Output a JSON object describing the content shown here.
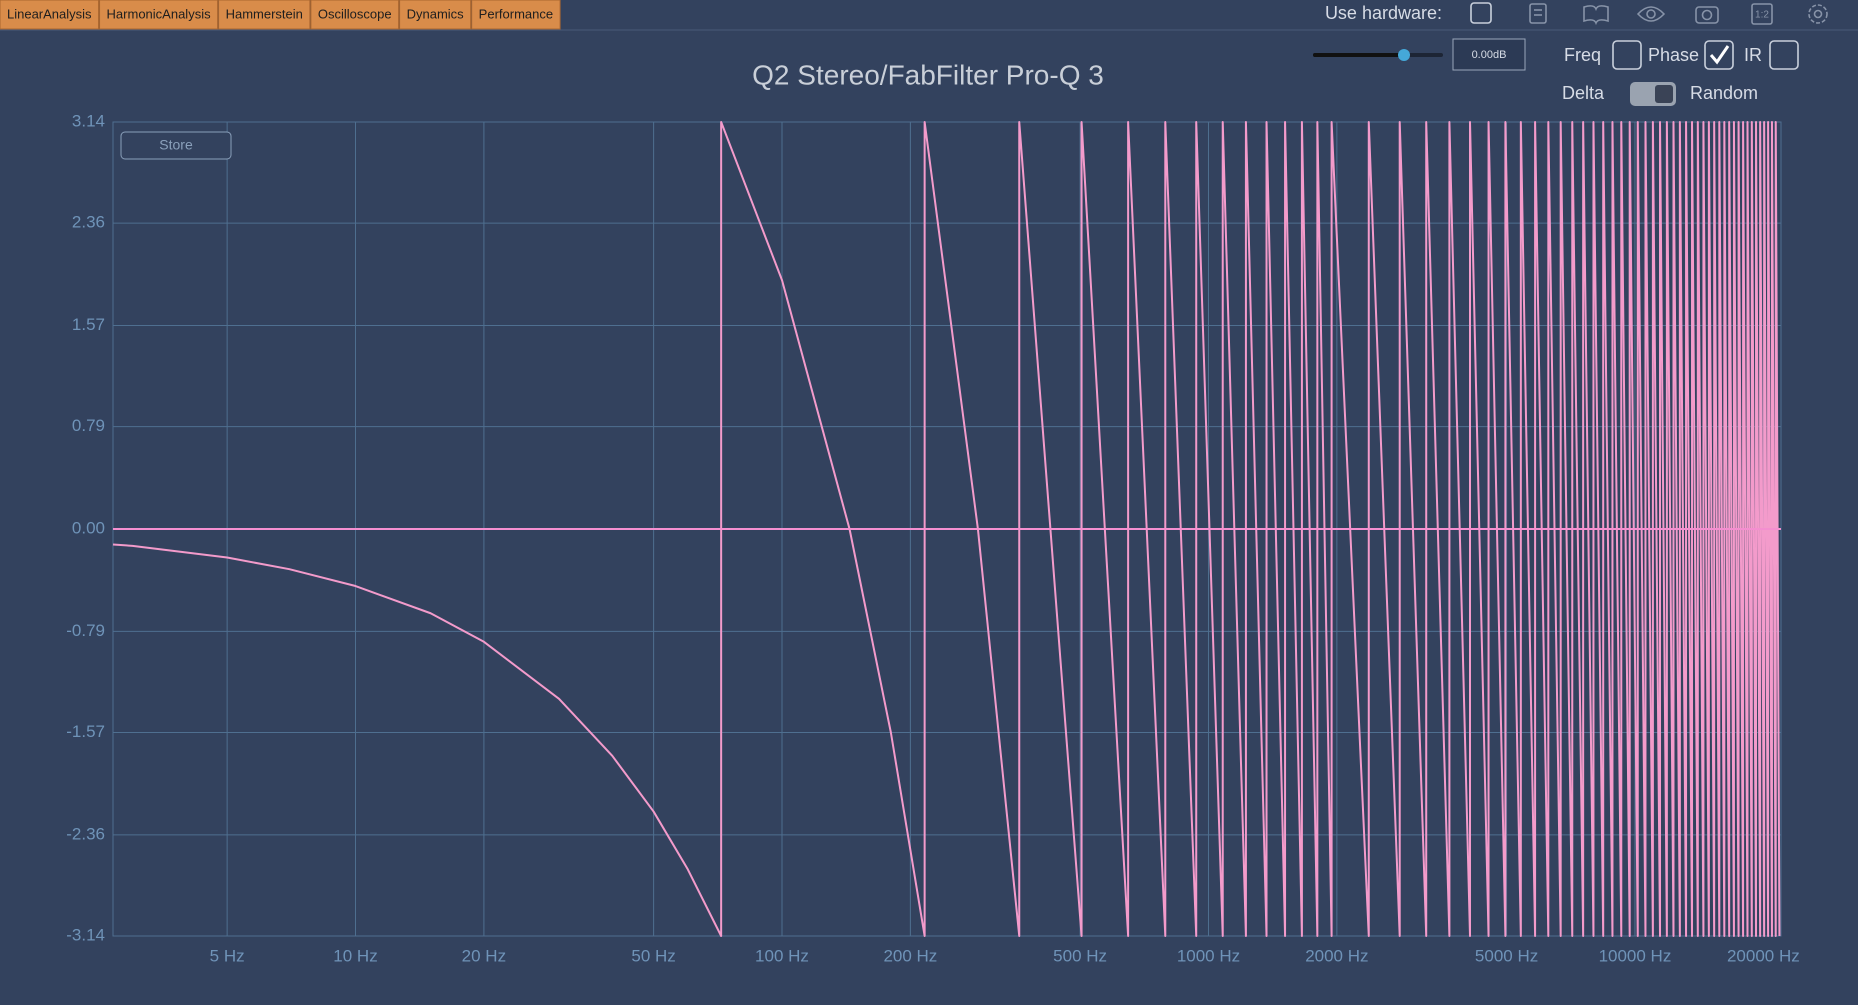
{
  "tabs": [
    "LinearAnalysis",
    "HarmonicAnalysis",
    "Hammerstein",
    "Oscilloscope",
    "Dynamics",
    "Performance"
  ],
  "toolbar": {
    "hardware_label": "Use hardware:",
    "gain": "0.00dB",
    "store": "Store",
    "options": [
      {
        "label": "Freq",
        "checked": false
      },
      {
        "label": "Phase",
        "checked": true
      },
      {
        "label": "IR",
        "checked": false
      }
    ],
    "delta": "Delta",
    "random": "Random"
  },
  "chart_data": {
    "type": "line",
    "title": "Q2 Stereo/FabFilter Pro-Q 3",
    "xscale": "log",
    "xlim": [
      2.7,
      22000
    ],
    "ylim": [
      -3.14,
      3.14
    ],
    "grid": true,
    "xticks": [
      {
        "value": 5,
        "label": "5 Hz"
      },
      {
        "value": 10,
        "label": "10 Hz"
      },
      {
        "value": 20,
        "label": "20 Hz"
      },
      {
        "value": 50,
        "label": "50 Hz"
      },
      {
        "value": 100,
        "label": "100 Hz"
      },
      {
        "value": 200,
        "label": "200 Hz"
      },
      {
        "value": 500,
        "label": "500 Hz"
      },
      {
        "value": 1000,
        "label": "1000 Hz"
      },
      {
        "value": 2000,
        "label": "2000 Hz"
      },
      {
        "value": 5000,
        "label": "5000 Hz"
      },
      {
        "value": 10000,
        "label": "10000 Hz"
      },
      {
        "value": 20000,
        "label": "20000 Hz"
      }
    ],
    "yticks": [
      3.14,
      2.36,
      1.57,
      0.79,
      {
        "value": 0,
        "label": "0.00"
      },
      -0.79,
      -1.57,
      -2.36,
      -3.14
    ],
    "series": [
      {
        "color": "#f39bcb",
        "x": [
          2.7,
          3,
          5,
          7,
          10,
          15,
          20,
          30,
          40,
          50,
          60,
          72,
          72,
          100,
          144,
          180,
          216,
          216,
          288,
          360,
          360,
          504,
          504,
          648,
          648,
          792,
          792,
          936,
          936,
          1080,
          1080,
          1224,
          1224,
          1368,
          1368,
          1512,
          1512,
          1656,
          1656,
          1800,
          1800,
          1944,
          1944,
          2376,
          2376,
          2808,
          2808,
          3240,
          3240,
          3672,
          3672,
          4104,
          4104,
          4536,
          4536,
          4968,
          4968,
          5400,
          5400,
          5832,
          5832,
          6264,
          6264,
          6696,
          6696,
          7128,
          7128,
          7560,
          7560,
          7992,
          7992,
          8424,
          8424,
          8856,
          8856,
          9288,
          9288,
          9720,
          9720,
          10152,
          10152,
          10584,
          10584,
          11016,
          11016,
          11448,
          11448,
          11880,
          11880,
          12312,
          12312,
          12744,
          12744,
          13176,
          13176,
          13608,
          13608,
          14040,
          14040,
          14472,
          14472,
          14904,
          14904,
          15336,
          15336,
          15768,
          15768,
          16200,
          16200,
          16632,
          16632,
          17064,
          17064,
          17496,
          17496,
          17928,
          17928,
          18360,
          18360,
          18792,
          18792,
          19224,
          19224,
          19656,
          19656,
          20088,
          20088,
          20520,
          20520,
          20952,
          20952,
          21384,
          21384,
          21816
        ],
        "values": [
          -0.12,
          -0.13,
          -0.22,
          -0.31,
          -0.44,
          -0.65,
          -0.87,
          -1.31,
          -1.75,
          -2.18,
          -2.62,
          -3.14,
          3.14,
          1.92,
          0,
          -1.57,
          -3.14,
          3.14,
          0,
          -3.14,
          3.14,
          -3.14,
          3.14,
          -3.14,
          3.14,
          -3.14,
          3.14,
          -3.14,
          3.14,
          -3.14,
          3.14,
          -3.14,
          3.14,
          -3.14,
          3.14,
          -3.14,
          3.14,
          -3.14,
          3.14,
          -3.14,
          3.14,
          -3.14,
          3.14,
          -3.14,
          3.14,
          -3.14,
          3.14,
          -3.14,
          3.14,
          -3.14,
          3.14,
          -3.14,
          3.14,
          -3.14,
          3.14,
          -3.14,
          3.14,
          -3.14,
          3.14,
          -3.14,
          3.14,
          -3.14,
          3.14,
          -3.14,
          3.14,
          -3.14,
          3.14,
          -3.14,
          3.14,
          -3.14,
          3.14,
          -3.14,
          3.14,
          -3.14,
          3.14,
          -3.14,
          3.14,
          -3.14,
          3.14,
          -3.14,
          3.14,
          -3.14,
          3.14,
          -3.14,
          3.14,
          -3.14,
          3.14,
          -3.14,
          3.14,
          -3.14,
          3.14,
          -3.14,
          3.14,
          -3.14,
          3.14,
          -3.14,
          3.14,
          -3.14,
          3.14,
          -3.14,
          3.14,
          -3.14,
          3.14,
          -3.14,
          3.14,
          -3.14,
          3.14,
          -3.14,
          3.14,
          -3.14,
          3.14,
          -3.14,
          3.14,
          -3.14,
          3.14,
          -3.14,
          3.14,
          -3.14,
          3.14,
          -3.14,
          3.14,
          -3.14,
          3.14,
          -3.14,
          3.14,
          -3.14,
          3.14,
          -3.14,
          3.14,
          -3.14,
          3.14,
          -3.14,
          3.14,
          -3.14
        ]
      },
      {
        "color": "#f48fd0",
        "x": [
          2.7,
          22000
        ],
        "values": [
          0,
          0
        ]
      }
    ]
  }
}
